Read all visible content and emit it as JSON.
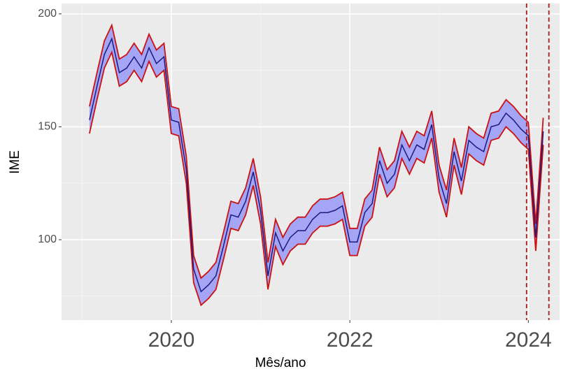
{
  "chart_data": {
    "type": "ribbon-line",
    "xlabel": "Mês/ano",
    "ylabel": "IME",
    "x": [
      2019.083,
      2019.167,
      2019.25,
      2019.333,
      2019.417,
      2019.5,
      2019.583,
      2019.667,
      2019.75,
      2019.833,
      2019.917,
      2020,
      2020.083,
      2020.167,
      2020.25,
      2020.333,
      2020.417,
      2020.5,
      2020.583,
      2020.667,
      2020.75,
      2020.833,
      2020.917,
      2021,
      2021.083,
      2021.167,
      2021.25,
      2021.333,
      2021.417,
      2021.5,
      2021.583,
      2021.667,
      2021.75,
      2021.833,
      2021.917,
      2022,
      2022.083,
      2022.167,
      2022.25,
      2022.333,
      2022.417,
      2022.5,
      2022.583,
      2022.667,
      2022.75,
      2022.833,
      2022.917,
      2023,
      2023.083,
      2023.167,
      2023.25,
      2023.333,
      2023.417,
      2023.5,
      2023.583,
      2023.667,
      2023.75,
      2023.833,
      2023.917,
      2024,
      2024.083,
      2024.167
    ],
    "values": [
      153,
      168,
      182,
      189,
      174,
      176,
      181,
      176,
      185,
      178,
      181,
      153,
      152,
      131,
      87,
      77,
      80,
      84,
      97,
      111,
      110,
      117,
      130,
      113,
      84,
      103,
      95,
      101,
      104,
      104,
      109,
      112,
      112,
      113,
      115,
      99,
      99,
      112,
      116,
      135,
      125,
      129,
      142,
      135,
      142,
      140,
      151,
      127,
      116,
      139,
      126,
      144,
      141,
      139,
      150,
      151,
      156,
      153,
      149,
      146,
      101,
      148
    ],
    "upper": [
      159,
      174,
      188,
      195,
      180,
      182,
      187,
      182,
      191,
      184,
      187,
      159,
      158,
      137,
      93,
      83,
      86,
      90,
      103,
      117,
      116,
      123,
      136,
      119,
      90,
      109,
      101,
      107,
      110,
      110,
      115,
      118,
      118,
      119,
      121,
      105,
      105,
      118,
      122,
      141,
      131,
      135,
      148,
      141,
      148,
      146,
      157,
      133,
      122,
      145,
      132,
      150,
      147,
      145,
      156,
      157,
      162,
      159,
      155,
      152,
      107,
      154
    ],
    "lower": [
      147,
      162,
      176,
      183,
      168,
      170,
      175,
      170,
      179,
      172,
      175,
      147,
      146,
      125,
      81,
      71,
      74,
      78,
      91,
      105,
      104,
      111,
      124,
      107,
      78,
      97,
      89,
      95,
      98,
      98,
      103,
      106,
      106,
      107,
      109,
      93,
      93,
      106,
      110,
      129,
      119,
      123,
      136,
      129,
      136,
      134,
      145,
      121,
      110,
      133,
      120,
      138,
      135,
      133,
      144,
      145,
      150,
      147,
      143,
      140,
      95,
      142
    ],
    "line_color": "#1a1a80",
    "band_color": "#cc1111",
    "band_fill": "#a5a5f5",
    "vlines": [
      2023.98,
      2024.23
    ],
    "vline_color": "#b01818",
    "xlim": [
      2018.77,
      2024.35
    ],
    "ylim": [
      64.4,
      204.6
    ],
    "xticks": [
      2020,
      2022,
      2024
    ],
    "yticks": [
      100,
      150,
      200
    ],
    "xminor": [
      2019,
      2021,
      2023
    ],
    "yminor": [
      75,
      125,
      175
    ],
    "grid": true
  }
}
